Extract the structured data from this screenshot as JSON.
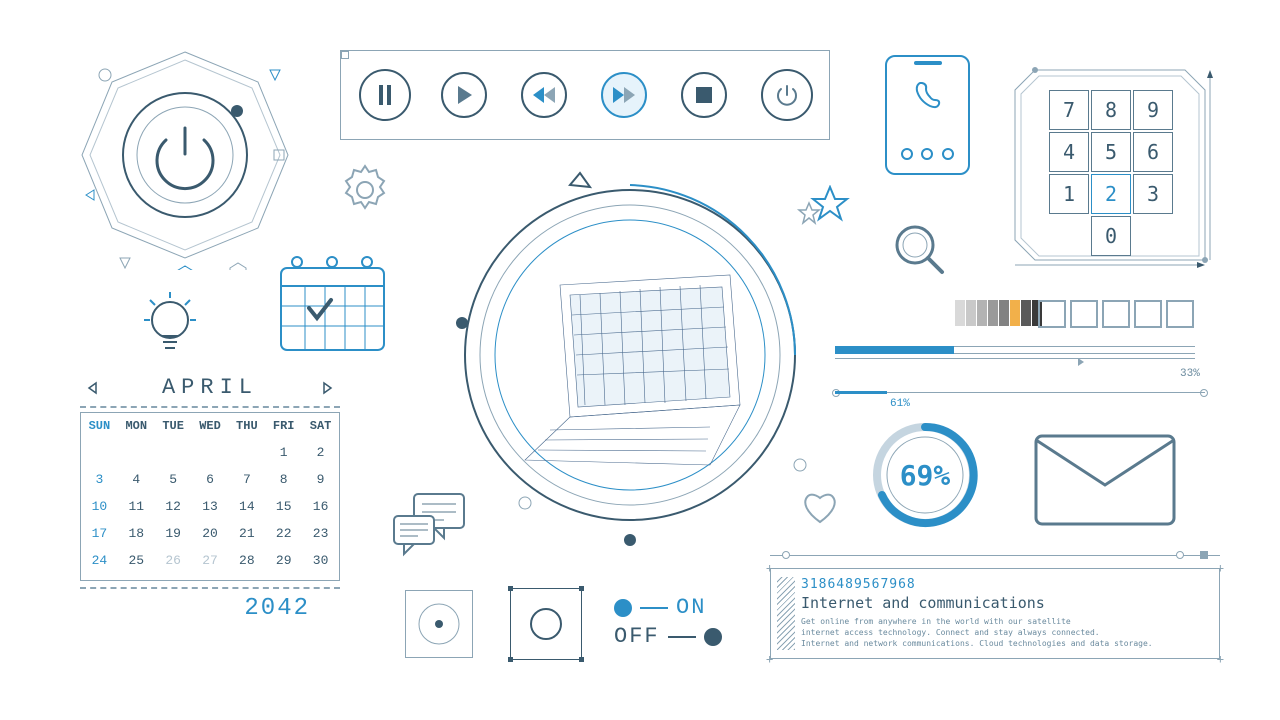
{
  "colors": {
    "primary_blue": "#2c8fc7",
    "dark_slate": "#3a5a6e",
    "mid_slate": "#5a7a8e",
    "light_slate": "#8ca5b5",
    "pale_slate": "#b5c5d0",
    "bg": "#ffffff",
    "accent_bg": "#e6f3fb"
  },
  "media_player": {
    "buttons": [
      "pause",
      "play",
      "rewind",
      "fast-forward",
      "stop",
      "power"
    ],
    "highlighted": "fast-forward"
  },
  "keypad": {
    "keys": [
      "7",
      "8",
      "9",
      "4",
      "5",
      "6",
      "1",
      "2",
      "3",
      "0"
    ],
    "highlighted_key": "2"
  },
  "calendar": {
    "month": "APRIL",
    "year": "2042",
    "days_of_week": [
      "SUN",
      "MON",
      "TUE",
      "WED",
      "THU",
      "FRI",
      "SAT"
    ],
    "first_weekday_index": 5,
    "days_in_month": 30,
    "sunday_dates": [
      3,
      10,
      17,
      24
    ],
    "dimmed_dates": [
      26,
      27
    ]
  },
  "progress": {
    "bar1_pct": "33%",
    "bar1_value": 33,
    "bar2_pct": "61%",
    "bar2_value": 61,
    "gauge_pct": "69%",
    "gauge_value": 69,
    "square_count": 5,
    "shade_colors": [
      "#d9d9d9",
      "#c9c9c9",
      "#b3b3b3",
      "#9a9a9a",
      "#828282",
      "#f2b04a",
      "#5a5a5a",
      "#3a3a3a"
    ]
  },
  "toggle": {
    "on_label": "ON",
    "off_label": "OFF"
  },
  "info_panel": {
    "number": "3186489567968",
    "title": "Internet and communications",
    "line1": "Get online from anywhere in the world with our satellite",
    "line2": "internet access technology. Connect and stay always connected.",
    "line3": "Internet and network communications. Cloud technologies and data storage."
  }
}
